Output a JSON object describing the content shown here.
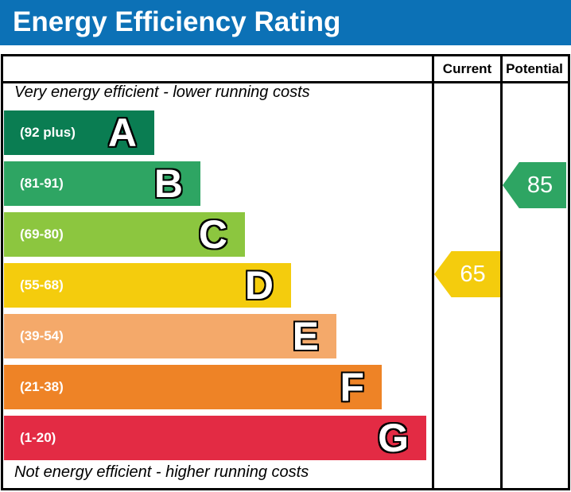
{
  "title": "Energy Efficiency Rating",
  "table": {
    "current_header": "Current",
    "potential_header": "Potential",
    "top_note": "Very energy efficient - lower running costs",
    "bottom_note": "Not energy efficient - higher running costs"
  },
  "colors": {
    "title_bar_blue": "#0c71b6",
    "border_black": "#000000",
    "band_a_green": "#0a7d52",
    "band_b_green": "#2ea563",
    "band_c_green": "#8cc63f",
    "band_d_yellow": "#f4cc0d",
    "band_e_orange": "#f4a96a",
    "band_f_orange": "#ee8326",
    "band_g_red": "#e32b44"
  },
  "chart_data": {
    "type": "bar",
    "title": "Energy Efficiency Rating",
    "legend_position": "none",
    "columns": [
      "Current",
      "Potential"
    ],
    "bands": [
      {
        "letter": "A",
        "range_label": "(92 plus)",
        "min": 92,
        "max": 100,
        "color": "#0a7d52",
        "width_pct": 35.2
      },
      {
        "letter": "B",
        "range_label": "(81-91)",
        "min": 81,
        "max": 91,
        "color": "#2ea563",
        "width_pct": 46.0
      },
      {
        "letter": "C",
        "range_label": "(69-80)",
        "min": 69,
        "max": 80,
        "color": "#8cc63f",
        "width_pct": 56.4
      },
      {
        "letter": "D",
        "range_label": "(55-68)",
        "min": 55,
        "max": 68,
        "color": "#f4cc0d",
        "width_pct": 67.2
      },
      {
        "letter": "E",
        "range_label": "(39-54)",
        "min": 39,
        "max": 54,
        "color": "#f4a96a",
        "width_pct": 77.8
      },
      {
        "letter": "F",
        "range_label": "(21-38)",
        "min": 21,
        "max": 38,
        "color": "#ee8326",
        "width_pct": 88.5
      },
      {
        "letter": "G",
        "range_label": "(1-20)",
        "min": 1,
        "max": 20,
        "color": "#e32b44",
        "width_pct": 98.9
      }
    ],
    "markers": {
      "current": {
        "value": 65,
        "band": "D",
        "color": "#f4cc0d"
      },
      "potential": {
        "value": 85,
        "band": "B",
        "color": "#2ea563"
      }
    }
  }
}
